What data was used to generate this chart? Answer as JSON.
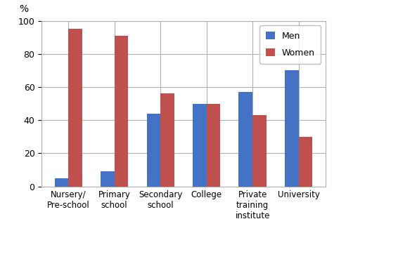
{
  "categories": [
    "Nursery/\nPre-school",
    "Primary\nschool",
    "Secondary\nschool",
    "College",
    "Private\ntraining\ninstitute",
    "University"
  ],
  "men_values": [
    5,
    9,
    44,
    50,
    57,
    70
  ],
  "women_values": [
    95,
    91,
    56,
    50,
    43,
    30
  ],
  "men_color": "#4472C4",
  "women_color": "#C0504D",
  "ylim": [
    0,
    100
  ],
  "yticks": [
    0,
    20,
    40,
    60,
    80,
    100
  ],
  "legend_men": "Men",
  "legend_women": "Women",
  "bar_width": 0.3,
  "background_color": "#ffffff",
  "grid_color": "#b0b0b0",
  "percent_label": "%"
}
